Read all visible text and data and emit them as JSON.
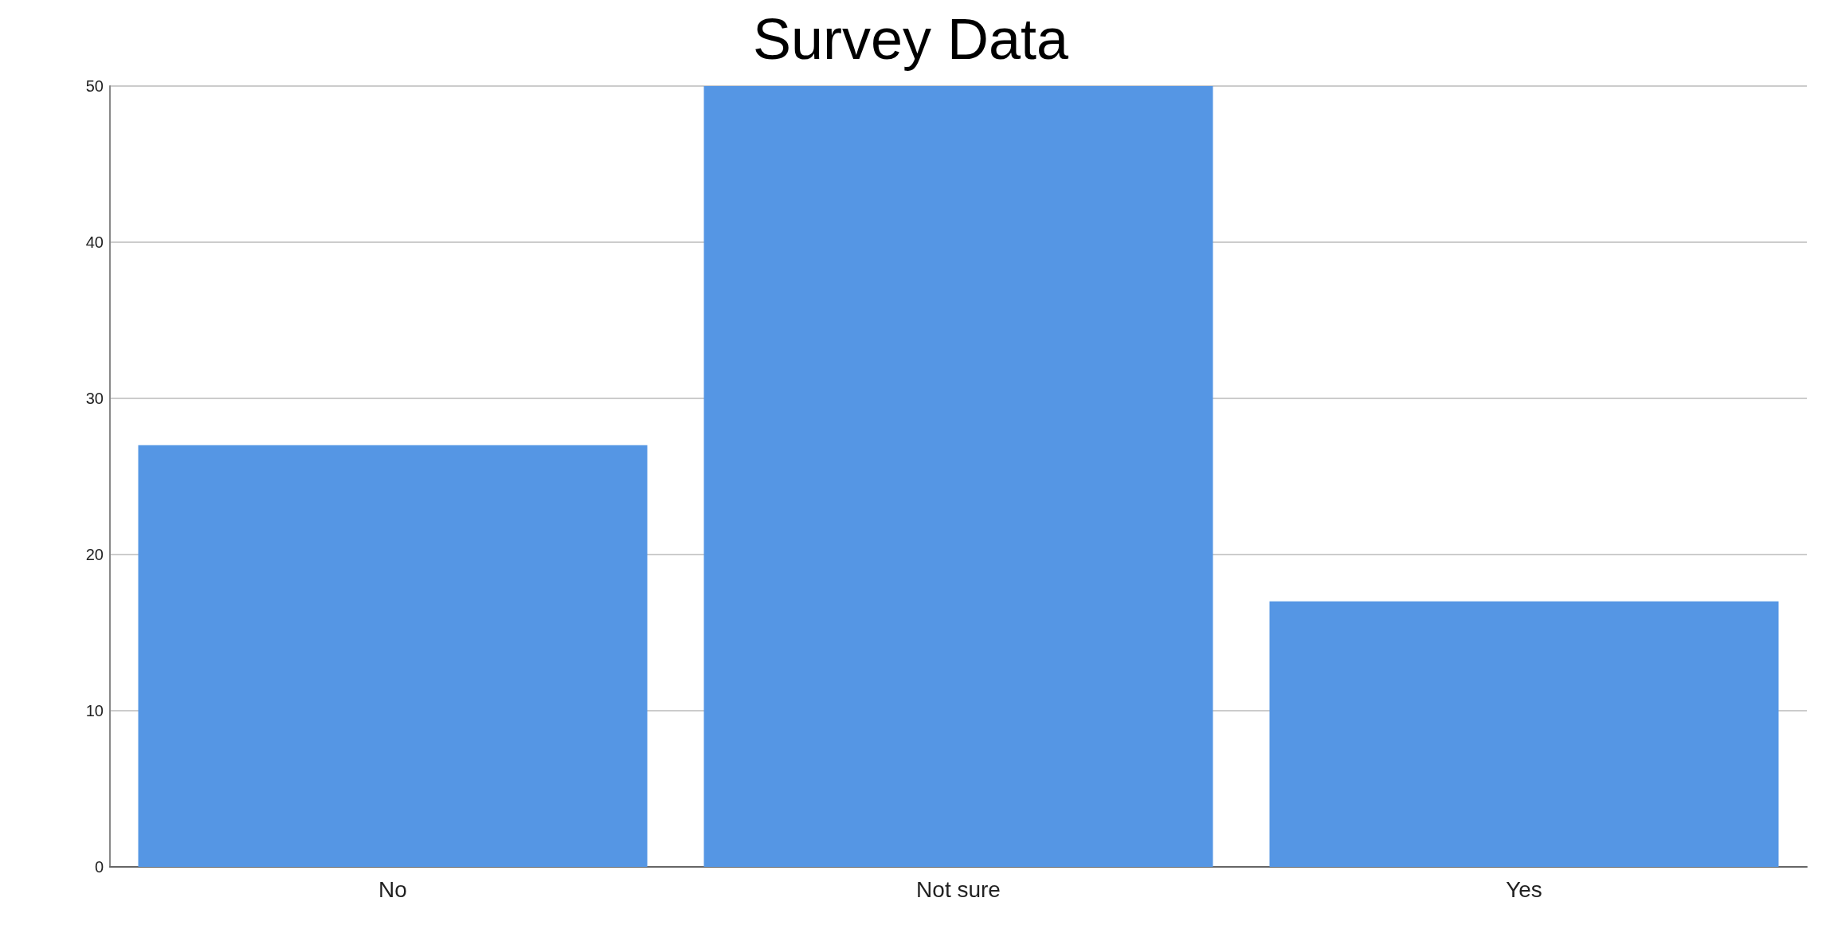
{
  "chart_data": {
    "type": "bar",
    "title": "Survey Data",
    "categories": [
      "No",
      "Not sure",
      "Yes"
    ],
    "values": [
      27,
      50,
      17
    ],
    "color": "#5596e4",
    "ylim": [
      0,
      50
    ],
    "yticks": [
      0,
      10,
      20,
      30,
      40,
      50
    ],
    "grid": "y"
  }
}
